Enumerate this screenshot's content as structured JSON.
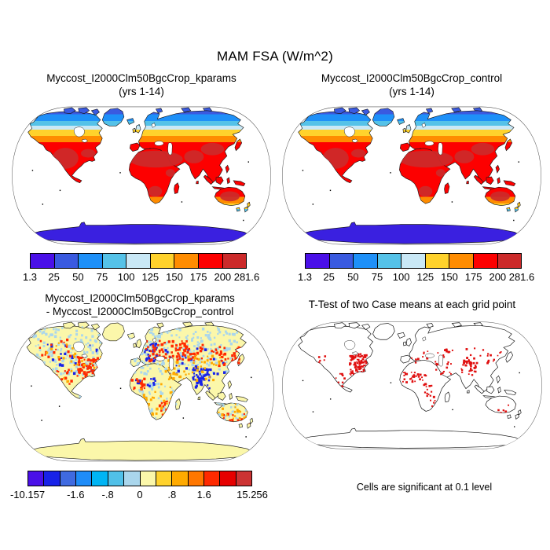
{
  "figure": {
    "title": "MAM FSA (W/m^2)",
    "footer": "Cells are significant at 0.1 level"
  },
  "panels": {
    "kparams": {
      "title_line1": "Myccost_I2000Clm50BgcCrop_kparams",
      "title_line2": "(yrs 1-14)"
    },
    "control": {
      "title_line1": "Myccost_I2000Clm50BgcCrop_control",
      "title_line2": "(yrs 1-14)"
    },
    "difference": {
      "title_line1": "Myccost_I2000Clm50BgcCrop_kparams",
      "title_line2": "- Myccost_I2000Clm50BgcCrop_control"
    },
    "ttest": {
      "title": "T-Test of two Case means at each grid point"
    }
  },
  "colorbars": {
    "absolute": {
      "labels": [
        "1.3",
        "25",
        "50",
        "75",
        "100",
        "125",
        "150",
        "175",
        "200",
        "281.6"
      ],
      "colors": [
        "#4a10e8",
        "#3a5ae0",
        "#1e90f8",
        "#55c2e8",
        "#c9e8f6",
        "#ffd22c",
        "#ff8c00",
        "#fd0000",
        "#cc2a2a"
      ]
    },
    "difference": {
      "labels": [
        "-10.157",
        "",
        "",
        "-1.6",
        "",
        "-.8",
        "",
        "0",
        "",
        ".8",
        "",
        "1.6",
        "",
        "",
        "15.256"
      ],
      "colors": [
        "#4a10e8",
        "#1822e8",
        "#3f6ae0",
        "#1e8cf8",
        "#00b4f4",
        "#50c0e8",
        "#aad6ec",
        "#fbf7aa",
        "#ffd22c",
        "#ffaa00",
        "#ff7700",
        "#ff2a00",
        "#e60000",
        "#cc3333"
      ]
    }
  },
  "map_colors": {
    "ocean": "#ffffff",
    "coastline": "#151515",
    "antarctica_absolute": "#3a20e0",
    "diff_base": "#fbf7aa",
    "ttest_land": "#ffffff",
    "ttest_significant": "#e01010"
  },
  "chart_data": [
    {
      "panel": "top_left",
      "type": "heatmap",
      "projection": "robinson_global_map",
      "title": "Myccost_I2000Clm50BgcCrop_kparams",
      "subtitle": "(yrs 1-14)",
      "variable": "MAM FSA",
      "units": "W/m^2",
      "levels": [
        1.3,
        25,
        50,
        75,
        100,
        125,
        150,
        175,
        200,
        281.6
      ],
      "value_range": [
        1.3,
        281.6
      ],
      "palette": [
        "#4a10e8",
        "#3a5ae0",
        "#1e90f8",
        "#55c2e8",
        "#c9e8f6",
        "#ffd22c",
        "#ff8c00",
        "#fd0000",
        "#cc2a2a"
      ],
      "spatial_pattern": "25-75 W/m^2 over Arctic land and Greenland, 100-125 pale band then 125-175 yellow/orange across boreal mid-latitudes, 175-281.6 red/dark-red across subtropics and tropics (Sahara, Arabia, India, Mexico, central Australia darkest), decreasing to 75-125 at southern South America tip; Antarctica uniform low ~25"
    },
    {
      "panel": "top_right",
      "type": "heatmap",
      "projection": "robinson_global_map",
      "title": "Myccost_I2000Clm50BgcCrop_control",
      "subtitle": "(yrs 1-14)",
      "variable": "MAM FSA",
      "units": "W/m^2",
      "levels": [
        1.3,
        25,
        50,
        75,
        100,
        125,
        150,
        175,
        200,
        281.6
      ],
      "value_range": [
        1.3,
        281.6
      ],
      "palette": [
        "#4a10e8",
        "#3a5ae0",
        "#1e90f8",
        "#55c2e8",
        "#c9e8f6",
        "#ffd22c",
        "#ff8c00",
        "#fd0000",
        "#cc2a2a"
      ],
      "spatial_pattern": "nearly identical pattern to the kparams case"
    },
    {
      "panel": "bottom_left",
      "type": "heatmap",
      "projection": "robinson_global_map",
      "title": "Myccost_I2000Clm50BgcCrop_kparams - Myccost_I2000Clm50BgcCrop_control",
      "variable": "MAM FSA difference",
      "units": "W/m^2",
      "levels_labeled": [
        -10.157,
        -1.6,
        -0.8,
        0,
        0.8,
        1.6,
        15.256
      ],
      "value_range": [
        -10.157,
        15.256
      ],
      "palette": [
        "#4a10e8",
        "#1822e8",
        "#3f6ae0",
        "#1e8cf8",
        "#00b4f4",
        "#50c0e8",
        "#aad6ec",
        "#fbf7aa",
        "#ffd22c",
        "#ffaa00",
        "#ff7700",
        "#ff2a00",
        "#e60000",
        "#cc3333"
      ],
      "spatial_pattern": "mostly near zero (pale yellow) with light-blue speckling at high latitudes; strong positive (red/orange) over eastern North America, Europe-western Russia, Amur region, southern Brazil, southeastern Africa and southern Australia; strong negative (blue) over northern India/Himalaya, central Europe and the West Africa monsoon band; Antarctica and Greenland near zero"
    },
    {
      "panel": "bottom_right",
      "type": "significance_map",
      "projection": "robinson_global_map",
      "title": "T-Test of two Case means at each grid point",
      "note": "Cells are significant at 0.1 level",
      "significant_color": "#e01010",
      "significant_regions": [
        "central and eastern United States",
        "Pacific coast of North America",
        "Mexico and Central America",
        "West Africa and Sahel",
        "North Africa coast",
        "Middle East",
        "Congo basin",
        "southeastern Africa and Madagascar",
        "southern Brazil",
        "Pakistan and northwest India",
        "central Asia",
        "northeast China",
        "southern Australia",
        "scattered southern Europe"
      ]
    }
  ]
}
